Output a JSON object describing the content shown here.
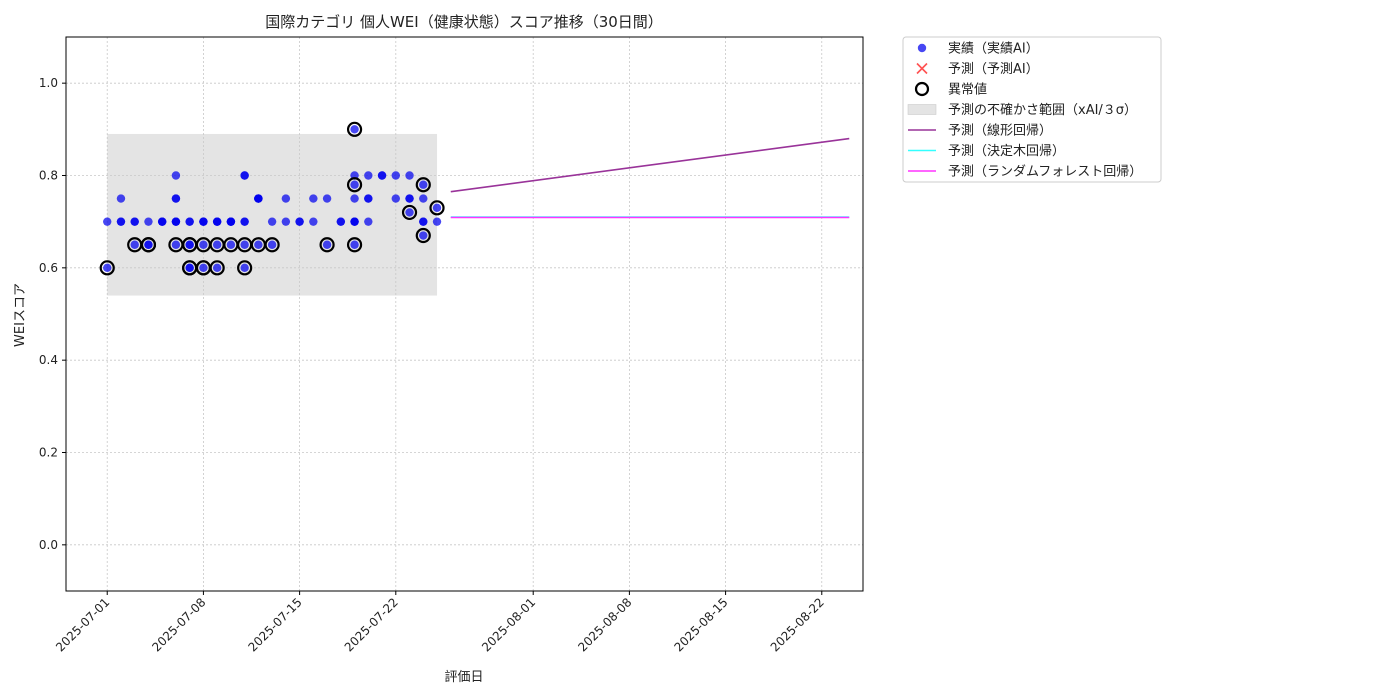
{
  "chart_data": {
    "type": "scatter",
    "title": "国際カテゴリ 個人WEI（健康状態）スコア推移（30日間）",
    "xlabel": "評価日",
    "ylabel": "WEIスコア",
    "xlim": [
      "2025-06-28",
      "2025-08-25"
    ],
    "ylim": [
      -0.1,
      1.1
    ],
    "yticks": [
      0.0,
      0.2,
      0.4,
      0.6,
      0.8,
      1.0
    ],
    "ytick_labels": [
      "0.0",
      "0.2",
      "0.4",
      "0.6",
      "0.8",
      "1.0"
    ],
    "xticks": [
      "2025-07-01",
      "2025-07-08",
      "2025-07-15",
      "2025-07-22",
      "2025-08-01",
      "2025-08-08",
      "2025-08-15",
      "2025-08-22"
    ],
    "grid": true,
    "legend_position": "outside-right-top",
    "uncertainty_band": {
      "name": "予測の不確かさ範囲（xAI/３σ）",
      "x_start": "2025-07-01",
      "x_end": "2025-07-25",
      "y_low": 0.54,
      "y_high": 0.89,
      "color": "#b3b3b3"
    },
    "series": [
      {
        "name": "実績（実績AI）",
        "kind": "scatter",
        "color": "#0000ee",
        "points": [
          [
            "2025-07-01",
            0.7
          ],
          [
            "2025-07-01",
            0.6
          ],
          [
            "2025-07-02",
            0.7
          ],
          [
            "2025-07-02",
            0.75
          ],
          [
            "2025-07-02",
            0.7
          ],
          [
            "2025-07-03",
            0.65
          ],
          [
            "2025-07-03",
            0.7
          ],
          [
            "2025-07-03",
            0.7
          ],
          [
            "2025-07-04",
            0.65
          ],
          [
            "2025-07-04",
            0.7
          ],
          [
            "2025-07-04",
            0.65
          ],
          [
            "2025-07-05",
            0.7
          ],
          [
            "2025-07-05",
            0.7
          ],
          [
            "2025-07-05",
            0.7
          ],
          [
            "2025-07-06",
            0.7
          ],
          [
            "2025-07-06",
            0.65
          ],
          [
            "2025-07-06",
            0.7
          ],
          [
            "2025-07-06",
            0.75
          ],
          [
            "2025-07-06",
            0.8
          ],
          [
            "2025-07-06",
            0.75
          ],
          [
            "2025-07-06",
            0.7
          ],
          [
            "2025-07-07",
            0.65
          ],
          [
            "2025-07-07",
            0.6
          ],
          [
            "2025-07-07",
            0.65
          ],
          [
            "2025-07-07",
            0.7
          ],
          [
            "2025-07-07",
            0.6
          ],
          [
            "2025-07-07",
            0.7
          ],
          [
            "2025-07-08",
            0.6
          ],
          [
            "2025-07-08",
            0.7
          ],
          [
            "2025-07-08",
            0.65
          ],
          [
            "2025-07-08",
            0.7
          ],
          [
            "2025-07-08",
            0.7
          ],
          [
            "2025-07-09",
            0.7
          ],
          [
            "2025-07-09",
            0.65
          ],
          [
            "2025-07-09",
            0.6
          ],
          [
            "2025-07-09",
            0.7
          ],
          [
            "2025-07-09",
            0.7
          ],
          [
            "2025-07-10",
            0.7
          ],
          [
            "2025-07-10",
            0.7
          ],
          [
            "2025-07-10",
            0.7
          ],
          [
            "2025-07-10",
            0.65
          ],
          [
            "2025-07-10",
            0.7
          ],
          [
            "2025-07-11",
            0.65
          ],
          [
            "2025-07-11",
            0.6
          ],
          [
            "2025-07-11",
            0.8
          ],
          [
            "2025-07-11",
            0.8
          ],
          [
            "2025-07-11",
            0.7
          ],
          [
            "2025-07-11",
            0.7
          ],
          [
            "2025-07-12",
            0.75
          ],
          [
            "2025-07-12",
            0.75
          ],
          [
            "2025-07-12",
            0.65
          ],
          [
            "2025-07-12",
            0.75
          ],
          [
            "2025-07-12",
            0.75
          ],
          [
            "2025-07-13",
            0.65
          ],
          [
            "2025-07-13",
            0.7
          ],
          [
            "2025-07-14",
            0.75
          ],
          [
            "2025-07-14",
            0.7
          ],
          [
            "2025-07-15",
            0.7
          ],
          [
            "2025-07-15",
            0.7
          ],
          [
            "2025-07-16",
            0.75
          ],
          [
            "2025-07-16",
            0.7
          ],
          [
            "2025-07-17",
            0.75
          ],
          [
            "2025-07-17",
            0.65
          ],
          [
            "2025-07-18",
            0.7
          ],
          [
            "2025-07-18",
            0.7
          ],
          [
            "2025-07-19",
            0.7
          ],
          [
            "2025-07-19",
            0.65
          ],
          [
            "2025-07-19",
            0.7
          ],
          [
            "2025-07-19",
            0.9
          ],
          [
            "2025-07-19",
            0.78
          ],
          [
            "2025-07-19",
            0.8
          ],
          [
            "2025-07-19",
            0.75
          ],
          [
            "2025-07-19",
            0.7
          ],
          [
            "2025-07-20",
            0.8
          ],
          [
            "2025-07-20",
            0.75
          ],
          [
            "2025-07-20",
            0.75
          ],
          [
            "2025-07-20",
            0.7
          ],
          [
            "2025-07-21",
            0.8
          ],
          [
            "2025-07-21",
            0.8
          ],
          [
            "2025-07-22",
            0.8
          ],
          [
            "2025-07-22",
            0.75
          ],
          [
            "2025-07-23",
            0.8
          ],
          [
            "2025-07-23",
            0.72
          ],
          [
            "2025-07-23",
            0.75
          ],
          [
            "2025-07-23",
            0.75
          ],
          [
            "2025-07-24",
            0.7
          ],
          [
            "2025-07-24",
            0.67
          ],
          [
            "2025-07-24",
            0.78
          ],
          [
            "2025-07-24",
            0.75
          ],
          [
            "2025-07-24",
            0.7
          ],
          [
            "2025-07-25",
            0.73
          ],
          [
            "2025-07-25",
            0.7
          ]
        ]
      },
      {
        "name": "予測（予測AI）",
        "kind": "x-marker",
        "color": "#ff3333",
        "points": []
      },
      {
        "name": "異常値",
        "kind": "ring",
        "color": "#000000",
        "points": [
          [
            "2025-07-01",
            0.6
          ],
          [
            "2025-07-03",
            0.65
          ],
          [
            "2025-07-04",
            0.65
          ],
          [
            "2025-07-04",
            0.65
          ],
          [
            "2025-07-06",
            0.65
          ],
          [
            "2025-07-07",
            0.65
          ],
          [
            "2025-07-07",
            0.65
          ],
          [
            "2025-07-07",
            0.6
          ],
          [
            "2025-07-07",
            0.6
          ],
          [
            "2025-07-08",
            0.6
          ],
          [
            "2025-07-08",
            0.6
          ],
          [
            "2025-07-08",
            0.65
          ],
          [
            "2025-07-09",
            0.65
          ],
          [
            "2025-07-09",
            0.6
          ],
          [
            "2025-07-10",
            0.65
          ],
          [
            "2025-07-11",
            0.65
          ],
          [
            "2025-07-11",
            0.6
          ],
          [
            "2025-07-12",
            0.65
          ],
          [
            "2025-07-13",
            0.65
          ],
          [
            "2025-07-17",
            0.65
          ],
          [
            "2025-07-19",
            0.9
          ],
          [
            "2025-07-19",
            0.78
          ],
          [
            "2025-07-19",
            0.65
          ],
          [
            "2025-07-23",
            0.72
          ],
          [
            "2025-07-24",
            0.78
          ],
          [
            "2025-07-24",
            0.67
          ],
          [
            "2025-07-25",
            0.73
          ]
        ]
      },
      {
        "name": "予測（線形回帰）",
        "kind": "line",
        "color": "#993399",
        "points": [
          [
            "2025-07-26",
            0.765
          ],
          [
            "2025-08-24",
            0.88
          ]
        ]
      },
      {
        "name": "予測（決定木回帰）",
        "kind": "line",
        "color": "#33ffff",
        "points": [
          [
            "2025-07-26",
            0.71
          ],
          [
            "2025-08-24",
            0.71
          ]
        ]
      },
      {
        "name": "予測（ランダムフォレスト回帰）",
        "kind": "line",
        "color": "#ff33ff",
        "points": [
          [
            "2025-07-26",
            0.709
          ],
          [
            "2025-08-24",
            0.709
          ]
        ]
      }
    ]
  }
}
